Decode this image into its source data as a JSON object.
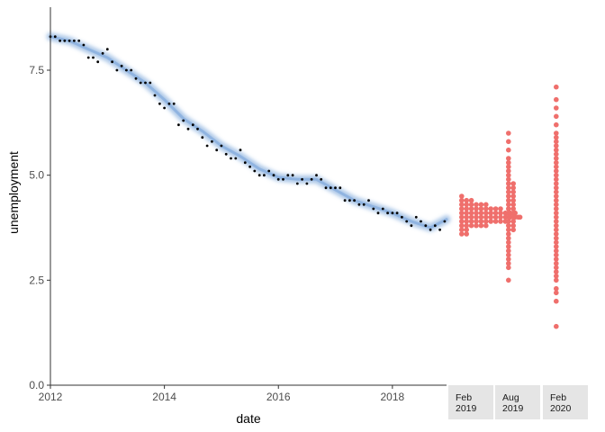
{
  "chart_data": {
    "type": "scatter",
    "xlabel": "date",
    "ylabel": "unemployment",
    "xlim": [
      2012.0,
      2018.95
    ],
    "ylim": [
      0,
      9
    ],
    "x_ticks": [
      2012,
      2014,
      2016,
      2018
    ],
    "x_tick_labels": [
      "2012",
      "2014",
      "2016",
      "2018"
    ],
    "y_ticks": [
      0,
      2.5,
      5,
      7.5
    ],
    "y_tick_labels": [
      "0.0",
      "2.5",
      "5.0",
      "7.5"
    ],
    "grid": false,
    "colors": {
      "observed": "#000000",
      "smooth": "#6a9ad6",
      "forecast": "#ef6f6c",
      "axis": "#333333",
      "strip_bg": "#e5e5e5"
    },
    "observed": {
      "x": [
        2012.0,
        2012.083,
        2012.167,
        2012.25,
        2012.333,
        2012.417,
        2012.5,
        2012.583,
        2012.667,
        2012.75,
        2012.833,
        2012.917,
        2013.0,
        2013.083,
        2013.167,
        2013.25,
        2013.333,
        2013.417,
        2013.5,
        2013.583,
        2013.667,
        2013.75,
        2013.833,
        2013.917,
        2014.0,
        2014.083,
        2014.167,
        2014.25,
        2014.333,
        2014.417,
        2014.5,
        2014.583,
        2014.667,
        2014.75,
        2014.833,
        2014.917,
        2015.0,
        2015.083,
        2015.167,
        2015.25,
        2015.333,
        2015.417,
        2015.5,
        2015.583,
        2015.667,
        2015.75,
        2015.833,
        2015.917,
        2016.0,
        2016.083,
        2016.167,
        2016.25,
        2016.333,
        2016.417,
        2016.5,
        2016.583,
        2016.667,
        2016.75,
        2016.833,
        2016.917,
        2017.0,
        2017.083,
        2017.167,
        2017.25,
        2017.333,
        2017.417,
        2017.5,
        2017.583,
        2017.667,
        2017.75,
        2017.833,
        2017.917,
        2018.0,
        2018.083,
        2018.167,
        2018.25,
        2018.333,
        2018.417,
        2018.5,
        2018.583,
        2018.667,
        2018.75,
        2018.833,
        2018.917
      ],
      "y": [
        8.3,
        8.3,
        8.2,
        8.2,
        8.2,
        8.2,
        8.2,
        8.1,
        7.8,
        7.8,
        7.7,
        7.9,
        8.0,
        7.7,
        7.5,
        7.6,
        7.5,
        7.5,
        7.3,
        7.2,
        7.2,
        7.2,
        6.9,
        6.7,
        6.6,
        6.7,
        6.7,
        6.2,
        6.3,
        6.1,
        6.2,
        6.1,
        5.9,
        5.7,
        5.8,
        5.6,
        5.7,
        5.5,
        5.4,
        5.4,
        5.6,
        5.3,
        5.2,
        5.1,
        5.0,
        5.0,
        5.1,
        5.0,
        4.9,
        4.9,
        5.0,
        5.0,
        4.8,
        4.9,
        4.8,
        4.9,
        5.0,
        4.9,
        4.7,
        4.7,
        4.7,
        4.7,
        4.4,
        4.4,
        4.4,
        4.3,
        4.3,
        4.4,
        4.2,
        4.1,
        4.2,
        4.1,
        4.1,
        4.1,
        4.0,
        3.9,
        3.8,
        4.0,
        3.9,
        3.8,
        3.7,
        3.8,
        3.7,
        3.9
      ]
    },
    "smooth": {
      "x": [
        2012.0,
        2012.333,
        2012.667,
        2013.0,
        2013.333,
        2013.667,
        2014.0,
        2014.333,
        2014.667,
        2015.0,
        2015.333,
        2015.667,
        2016.0,
        2016.333,
        2016.667,
        2017.0,
        2017.333,
        2017.667,
        2018.0,
        2018.333,
        2018.667,
        2018.95
      ],
      "y": [
        8.3,
        8.2,
        8.0,
        7.8,
        7.5,
        7.2,
        6.8,
        6.35,
        6.05,
        5.7,
        5.45,
        5.15,
        4.95,
        4.9,
        4.9,
        4.65,
        4.4,
        4.25,
        4.1,
        3.9,
        3.75,
        3.95
      ]
    },
    "forecasts": [
      {
        "label": "Feb\n2019",
        "values": [
          4.5,
          4.4,
          4.4,
          4.4,
          4.3,
          4.3,
          4.3,
          4.3,
          4.3,
          4.3,
          4.2,
          4.2,
          4.2,
          4.2,
          4.2,
          4.2,
          4.2,
          4.2,
          4.2,
          4.1,
          4.1,
          4.1,
          4.1,
          4.1,
          4.1,
          4.1,
          4.1,
          4.1,
          4.1,
          4.1,
          4.1,
          4.0,
          4.0,
          4.0,
          4.0,
          4.0,
          4.0,
          4.0,
          4.0,
          4.0,
          4.0,
          4.0,
          4.0,
          4.0,
          3.9,
          3.9,
          3.9,
          3.9,
          3.9,
          3.9,
          3.9,
          3.9,
          3.9,
          3.9,
          3.8,
          3.8,
          3.8,
          3.8,
          3.8,
          3.8,
          3.7,
          3.7,
          3.6,
          3.6
        ]
      },
      {
        "label": "Aug\n2019",
        "values": [
          6.0,
          5.8,
          5.6,
          5.4,
          5.3,
          5.2,
          5.1,
          5.0,
          4.9,
          4.8,
          4.8,
          4.7,
          4.7,
          4.6,
          4.6,
          4.5,
          4.5,
          4.4,
          4.4,
          4.3,
          4.3,
          4.2,
          4.2,
          4.1,
          4.1,
          4.0,
          4.0,
          4.0,
          3.9,
          3.9,
          3.8,
          3.8,
          3.7,
          3.7,
          3.6,
          3.5,
          3.4,
          3.3,
          3.2,
          3.1,
          3.0,
          2.9,
          2.8,
          2.5
        ]
      },
      {
        "label": "Feb\n2020",
        "values": [
          7.1,
          6.8,
          6.6,
          6.4,
          6.2,
          6.0,
          5.9,
          5.8,
          5.7,
          5.6,
          5.5,
          5.4,
          5.3,
          5.2,
          5.1,
          5.0,
          4.9,
          4.8,
          4.7,
          4.6,
          4.5,
          4.4,
          4.3,
          4.2,
          4.1,
          4.0,
          3.9,
          3.8,
          3.7,
          3.6,
          3.5,
          3.4,
          3.3,
          3.2,
          3.1,
          3.0,
          2.9,
          2.8,
          2.7,
          2.6,
          2.5,
          2.3,
          2.2,
          2.0,
          1.4
        ]
      }
    ]
  }
}
